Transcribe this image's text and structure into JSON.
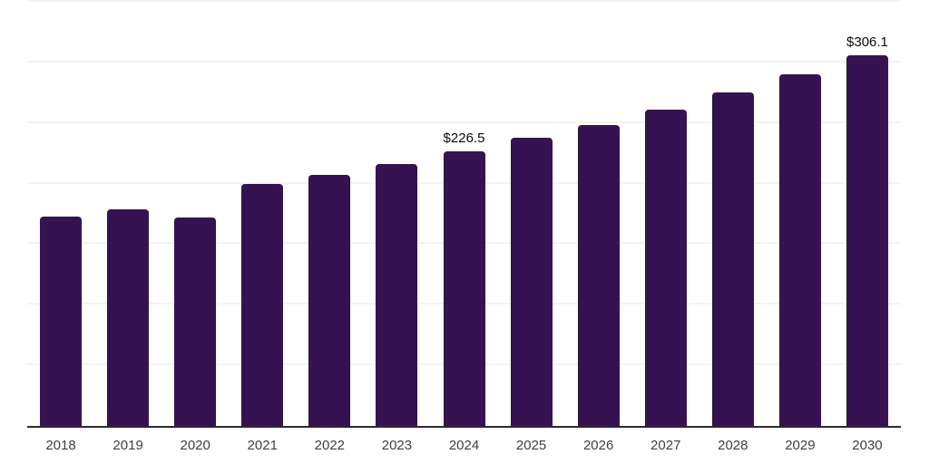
{
  "chart_data": {
    "type": "bar",
    "title": "",
    "xlabel": "",
    "ylabel": "",
    "categories": [
      "2018",
      "2019",
      "2020",
      "2021",
      "2022",
      "2023",
      "2024",
      "2025",
      "2026",
      "2027",
      "2028",
      "2029",
      "2030"
    ],
    "values": [
      173.0,
      179.0,
      172.0,
      199.5,
      207.5,
      216.5,
      226.5,
      237.5,
      248.5,
      261.0,
      275.0,
      290.5,
      306.1
    ],
    "data_labels": [
      {
        "category": "2024",
        "label": "$226.5"
      },
      {
        "category": "2030",
        "label": "$306.1"
      }
    ],
    "ylim": [
      0,
      350
    ],
    "gridline_step": 50,
    "grid": "horizontal",
    "legend_position": "none",
    "colors": {
      "bar": "#361253",
      "gridline": "#f3f3f3",
      "axis_line": "#2b2b2b",
      "tick_label": "#3f3f3f",
      "data_label": "#0a0a0a",
      "background": "#ffffff"
    }
  }
}
